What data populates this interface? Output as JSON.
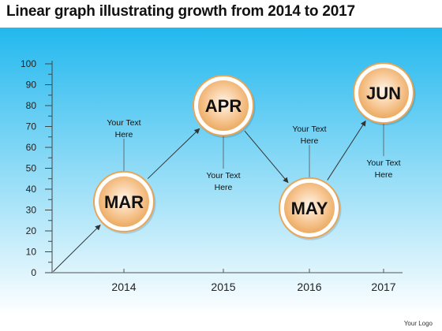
{
  "chart_data": {
    "type": "line",
    "title": "Linear graph illustrating growth from 2014 to 2017",
    "x_ticks": [
      "2014",
      "2015",
      "2016",
      "2017"
    ],
    "y_ticks": [
      "0",
      "10",
      "20",
      "30",
      "40",
      "50",
      "60",
      "70",
      "80",
      "90",
      "100"
    ],
    "ylim": [
      0,
      100
    ],
    "points": [
      {
        "label": "MAR",
        "value": 34
      },
      {
        "label": "APR",
        "value": 80
      },
      {
        "label": "MAY",
        "value": 31
      },
      {
        "label": "JUN",
        "value": 86
      }
    ],
    "annotations": [
      {
        "text": [
          "Your Text",
          "Here"
        ]
      },
      {
        "text": [
          "Your Text",
          "Here"
        ]
      },
      {
        "text": [
          "Your Text",
          "Here"
        ]
      },
      {
        "text": [
          "Your Text",
          "Here"
        ]
      }
    ],
    "colors": {
      "background_top": "#22b8ee",
      "background_bottom": "#ffffff",
      "marker_fill": "#f7c896",
      "marker_ring": "#e9a456",
      "arrow": "#333333"
    }
  },
  "footer": {
    "logo_text": "Your Logo"
  }
}
